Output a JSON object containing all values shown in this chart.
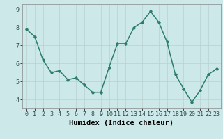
{
  "x": [
    0,
    1,
    2,
    3,
    4,
    5,
    6,
    7,
    8,
    9,
    10,
    11,
    12,
    13,
    14,
    15,
    16,
    17,
    18,
    19,
    20,
    21,
    22,
    23
  ],
  "y": [
    7.9,
    7.5,
    6.2,
    5.5,
    5.6,
    5.1,
    5.2,
    4.8,
    4.4,
    4.4,
    5.8,
    7.1,
    7.1,
    8.0,
    8.3,
    8.9,
    8.3,
    7.2,
    5.4,
    4.6,
    3.85,
    4.5,
    5.4,
    5.7
  ],
  "xlabel": "Humidex (Indice chaleur)",
  "ylim": [
    3.5,
    9.3
  ],
  "xlim": [
    -0.5,
    23.5
  ],
  "yticks": [
    4,
    5,
    6,
    7,
    8,
    9
  ],
  "xticks": [
    0,
    1,
    2,
    3,
    4,
    5,
    6,
    7,
    8,
    9,
    10,
    11,
    12,
    13,
    14,
    15,
    16,
    17,
    18,
    19,
    20,
    21,
    22,
    23
  ],
  "xtick_labels": [
    "0",
    "1",
    "2",
    "3",
    "4",
    "5",
    "6",
    "7",
    "8",
    "9",
    "10",
    "11",
    "12",
    "13",
    "14",
    "15",
    "16",
    "17",
    "18",
    "19",
    "20",
    "21",
    "22",
    "23"
  ],
  "ytick_labels": [
    "4",
    "5",
    "6",
    "7",
    "8",
    "9"
  ],
  "line_color": "#2d7d6d",
  "marker": "D",
  "marker_size": 1.8,
  "bg_color": "#cde8e8",
  "grid_color": "#b8d0d0",
  "xlabel_fontsize": 7.5,
  "tick_fontsize": 6.0,
  "line_width": 1.1
}
